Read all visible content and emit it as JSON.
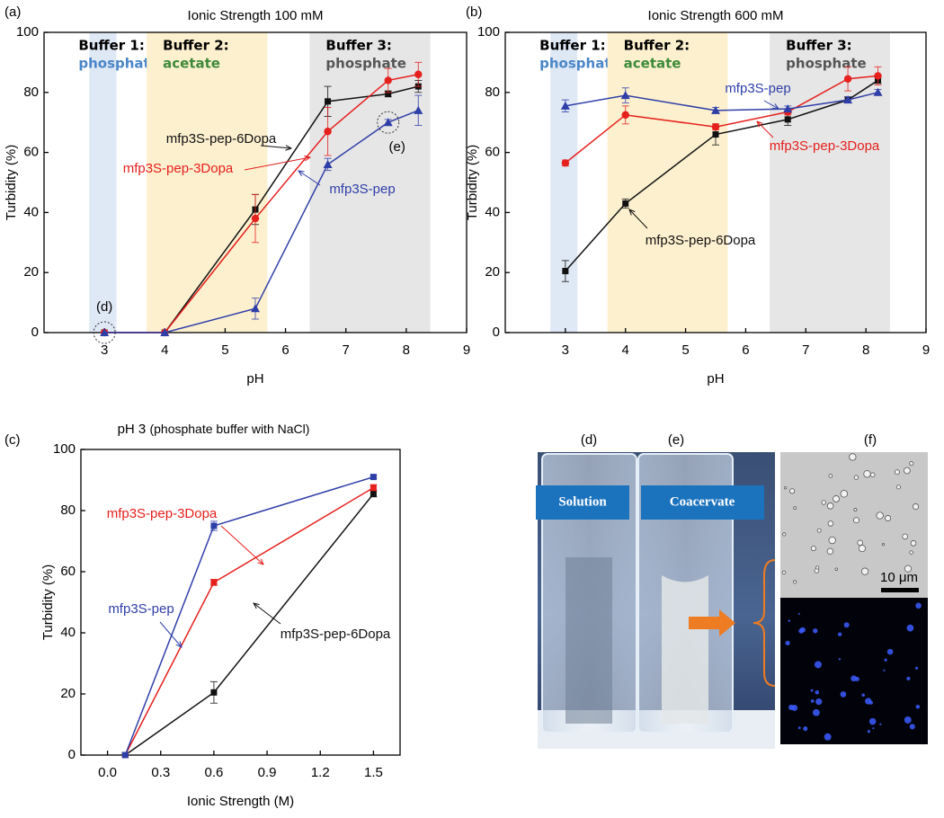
{
  "chart_data": [
    {
      "type": "line",
      "panel": "(a)",
      "title": "Ionic Strength 100 mM",
      "xlabel": "pH",
      "ylabel": "Turbidity (%)",
      "xlim": [
        2,
        9
      ],
      "xticks": [
        3,
        4,
        5,
        6,
        7,
        8,
        9
      ],
      "ylim": [
        0,
        100
      ],
      "yticks": [
        0,
        20,
        40,
        60,
        80,
        100
      ],
      "regions": [
        {
          "label": "Buffer 1:",
          "sublabel": "phosphate",
          "color": "#dfe8f5",
          "text_color": "#4a86c8",
          "range": [
            2.75,
            3.2
          ]
        },
        {
          "label": "Buffer 2:",
          "sublabel": "acetate",
          "color": "#fdf0cf",
          "text_color": "#3e8a3a",
          "range": [
            3.7,
            5.7
          ]
        },
        {
          "label": "Buffer 3:",
          "sublabel": "phosphate",
          "color": "#e6e6e6",
          "text_color": "#555555",
          "range": [
            6.4,
            8.4
          ]
        }
      ],
      "x": [
        3,
        4,
        5.5,
        6.7,
        7.7,
        8.2
      ],
      "series": [
        {
          "name": "mfp3S-pep-6Dopa",
          "color": "#111111",
          "marker": "square",
          "values": [
            0,
            0,
            41,
            77,
            79.5,
            82
          ],
          "errors": [
            0,
            0,
            5,
            5,
            1,
            2
          ]
        },
        {
          "name": "mfp3S-pep-3Dopa",
          "color": "#e5201d",
          "marker": "circle",
          "values": [
            0,
            0,
            38,
            67,
            84,
            86
          ],
          "errors": [
            0,
            0,
            8,
            8,
            4,
            4
          ]
        },
        {
          "name": "mfp3S-pep",
          "color": "#2f3fa8",
          "marker": "triangle",
          "values": [
            0,
            0,
            8,
            56,
            70,
            74
          ],
          "errors": [
            0,
            0,
            3.5,
            2,
            1,
            5
          ]
        }
      ],
      "annotations": [
        "(d)",
        "(e)"
      ]
    },
    {
      "type": "line",
      "panel": "(b)",
      "title": "Ionic Strength 600 mM",
      "xlabel": "pH",
      "ylabel": "Turbidity (%)",
      "xlim": [
        2,
        9
      ],
      "xticks": [
        3,
        4,
        5,
        6,
        7,
        8,
        9
      ],
      "ylim": [
        0,
        100
      ],
      "yticks": [
        0,
        20,
        40,
        60,
        80,
        100
      ],
      "regions": [
        {
          "label": "Buffer 1:",
          "sublabel": "phosphate",
          "color": "#dfe8f5",
          "text_color": "#4a86c8",
          "range": [
            2.75,
            3.2
          ]
        },
        {
          "label": "Buffer 2:",
          "sublabel": "acetate",
          "color": "#fdf0cf",
          "text_color": "#3e8a3a",
          "range": [
            3.7,
            5.7
          ]
        },
        {
          "label": "Buffer 3:",
          "sublabel": "phosphate",
          "color": "#e6e6e6",
          "text_color": "#555555",
          "range": [
            6.4,
            8.4
          ]
        }
      ],
      "x": [
        3,
        4,
        5.5,
        6.7,
        7.7,
        8.2
      ],
      "series": [
        {
          "name": "mfp3S-pep-6Dopa",
          "color": "#111111",
          "marker": "square",
          "values": [
            20.5,
            43,
            66,
            71,
            77.5,
            84
          ],
          "errors": [
            3.5,
            1.5,
            3.5,
            2,
            1,
            1
          ]
        },
        {
          "name": "mfp3S-pep-3Dopa",
          "color": "#e5201d",
          "marker": "circle",
          "values": [
            56.5,
            72.5,
            68.5,
            73.5,
            84.5,
            85.5
          ],
          "errors": [
            1,
            3,
            1,
            1,
            4,
            3
          ]
        },
        {
          "name": "mfp3S-pep",
          "color": "#2f3fa8",
          "marker": "triangle",
          "values": [
            75.5,
            79,
            74,
            74.5,
            77.5,
            80
          ],
          "errors": [
            2,
            2.5,
            1,
            1,
            1,
            1
          ]
        }
      ]
    },
    {
      "type": "line",
      "panel": "(c)",
      "title": "pH 3",
      "subtitle": "(phosphate buffer with NaCl)",
      "xlabel": "Ionic Strength (M)",
      "ylabel": "Turbidity (%)",
      "xlim": [
        -0.15,
        1.65
      ],
      "xticks": [
        {
          "value": 0,
          "label": "0.0"
        },
        {
          "value": 0.3,
          "label": "0.3"
        },
        {
          "value": 0.6,
          "label": "0.6"
        },
        {
          "value": 0.9,
          "label": "0.9"
        },
        {
          "value": 1.2,
          "label": "1.2"
        },
        {
          "value": 1.5,
          "label": "1.5"
        }
      ],
      "ylim": [
        0,
        100
      ],
      "yticks": [
        0,
        20,
        40,
        60,
        80,
        100
      ],
      "x": [
        0.1,
        0.6,
        1.5
      ],
      "series": [
        {
          "name": "mfp3S-pep-6Dopa",
          "color": "#111111",
          "marker": "square",
          "values": [
            0,
            20.5,
            85.5
          ],
          "errors": [
            0,
            3.5,
            1
          ]
        },
        {
          "name": "mfp3S-pep-3Dopa",
          "color": "#e5201d",
          "marker": "square",
          "values": [
            0,
            56.5,
            87.5
          ],
          "errors": [
            0,
            1,
            1
          ]
        },
        {
          "name": "mfp3S-pep",
          "color": "#2f3fa8",
          "marker": "square",
          "values": [
            0,
            75,
            91
          ],
          "errors": [
            0,
            1.5,
            0.5
          ]
        }
      ]
    }
  ],
  "photo": {
    "panels": [
      "(d)",
      "(e)",
      "(f)"
    ],
    "tags": [
      "Solution",
      "Coacervate"
    ],
    "scale_bar": "10 μm"
  }
}
